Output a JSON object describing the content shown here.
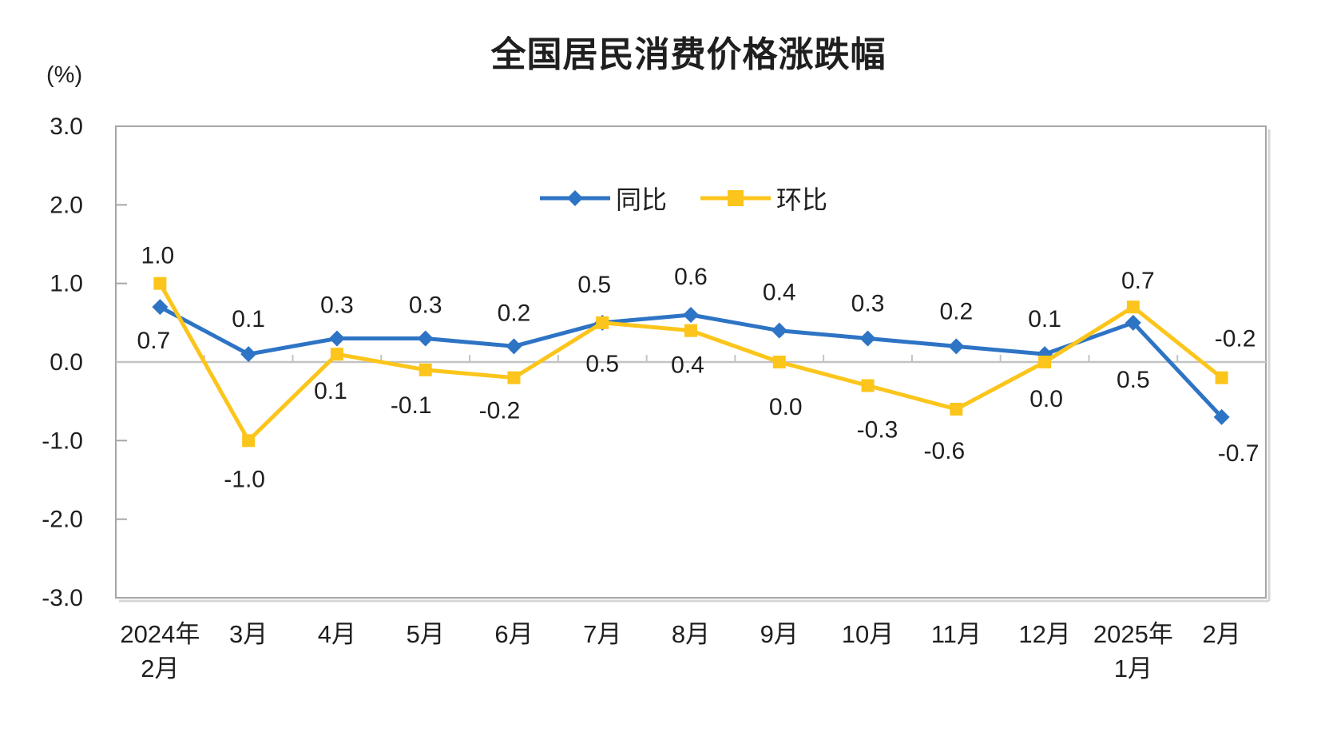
{
  "header": {
    "title": "全国居民消费价格涨跌幅",
    "unit_label": "(%)"
  },
  "legend": {
    "position": "top-center-inside",
    "items": [
      {
        "label": "同比",
        "marker": "diamond"
      },
      {
        "label": "环比",
        "marker": "square"
      }
    ]
  },
  "colors": {
    "tongbi_blue": "#2E74C5",
    "huanbi_yellow": "#FBC51B",
    "plot_border": "#A6A6A6",
    "zero_line": "#C3C3C3",
    "border_shadow": "#D6D6D6",
    "text": "#1F1F1F"
  },
  "chart_data": {
    "type": "line",
    "title": "全国居民消费价格涨跌幅",
    "ylabel": "(%)",
    "ylim": [
      -3.0,
      3.0
    ],
    "ytick_values": [
      3,
      2,
      1,
      0,
      -1,
      -2,
      -3
    ],
    "ytick_labels": [
      "3.0",
      "2.0",
      "1.0",
      "0.0",
      "-1.0",
      "-2.0",
      "-3.0"
    ],
    "grid": false,
    "zero_gridline": true,
    "legend_position": "top-center-inside",
    "categories": [
      [
        "2024年",
        "2月"
      ],
      [
        "3月"
      ],
      [
        "4月"
      ],
      [
        "5月"
      ],
      [
        "6月"
      ],
      [
        "7月"
      ],
      [
        "8月"
      ],
      [
        "9月"
      ],
      [
        "10月"
      ],
      [
        "11月"
      ],
      [
        "12月"
      ],
      [
        "2025年",
        "1月"
      ],
      [
        "2月"
      ]
    ],
    "series": [
      {
        "name": "同比",
        "marker": "diamond",
        "color": "#2E74C5",
        "values": [
          0.7,
          0.1,
          0.3,
          0.3,
          0.2,
          0.5,
          0.6,
          0.4,
          0.3,
          0.2,
          0.1,
          0.5,
          -0.7
        ],
        "labels": [
          "0.7",
          "0.1",
          "0.3",
          "0.3",
          "0.2",
          "0.5",
          "0.6",
          "0.4",
          "0.3",
          "0.2",
          "0.1",
          "0.5",
          "-0.7"
        ],
        "label_offsets": [
          [
            -8,
            42
          ],
          [
            0,
            -44
          ],
          [
            0,
            -42
          ],
          [
            0,
            -42
          ],
          [
            0,
            -42
          ],
          [
            -10,
            -48
          ],
          [
            0,
            -48
          ],
          [
            0,
            -48
          ],
          [
            0,
            -44
          ],
          [
            0,
            -44
          ],
          [
            0,
            -44
          ],
          [
            0,
            71
          ],
          [
            21,
            45
          ]
        ]
      },
      {
        "name": "环比",
        "marker": "square",
        "color": "#FBC51B",
        "values": [
          1.0,
          -1.0,
          0.1,
          -0.1,
          -0.2,
          0.5,
          0.4,
          0.0,
          -0.3,
          -0.6,
          0.0,
          0.7,
          -0.2
        ],
        "labels": [
          "1.0",
          "-1.0",
          "0.1",
          "-0.1",
          "-0.2",
          "0.5",
          "0.4",
          "0.0",
          "-0.3",
          "-0.6",
          "0.0",
          "0.7",
          "-0.2"
        ],
        "label_offsets": [
          [
            -3,
            -35
          ],
          [
            -5,
            48
          ],
          [
            -8,
            46
          ],
          [
            -18,
            44
          ],
          [
            -18,
            41
          ],
          [
            0,
            51
          ],
          [
            -4,
            43
          ],
          [
            8,
            56
          ],
          [
            12,
            55
          ],
          [
            -15,
            52
          ],
          [
            2,
            46
          ],
          [
            6,
            -33
          ],
          [
            17,
            -49
          ]
        ]
      }
    ]
  }
}
